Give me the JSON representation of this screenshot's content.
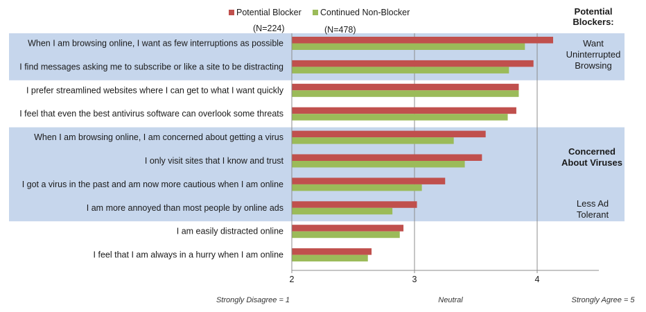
{
  "chart_data": {
    "type": "bar",
    "orientation": "horizontal",
    "categories": [
      "When I am browsing online, I want as few interruptions as possible",
      "I find messages asking me to subscribe or like a site to be distracting",
      "I prefer streamlined websites where I can get to what I want quickly",
      "I feel that even the best antivirus software can overlook some threats",
      "When I am browsing online, I am concerned about getting a virus",
      "I only visit sites that I know and trust",
      "I got a virus in the past and am now more cautious when I am online",
      "I am more annoyed than most people by online ads",
      "I am easily distracted online",
      "I feel that I am always in a hurry when I am online"
    ],
    "series": [
      {
        "name": "Potential Blocker",
        "sample": "(N=224)",
        "color": "#c0504d",
        "values": [
          4.13,
          3.97,
          3.85,
          3.83,
          3.58,
          3.55,
          3.25,
          3.02,
          2.91,
          2.65
        ]
      },
      {
        "name": "Continued Non-Blocker",
        "sample": "(N=478)",
        "color": "#9bbb59",
        "values": [
          3.9,
          3.77,
          3.85,
          3.76,
          3.32,
          3.41,
          3.06,
          2.82,
          2.88,
          2.62
        ]
      }
    ],
    "xlim": [
      2,
      4.5
    ],
    "xticks": [
      2,
      3,
      4
    ],
    "gridlines": [
      3,
      4
    ],
    "axis_anchors": [
      "Strongly Disagree = 1",
      "Neutral",
      "Strongly Agree = 5"
    ],
    "title": "",
    "xlabel": "",
    "ylabel": "",
    "legend": "top",
    "highlight_color": "#c6d6ec",
    "side_heading": [
      "Potential",
      "Blockers:"
    ],
    "group_notes": [
      {
        "lines": [
          "Want",
          "Uninterrupted",
          "Browsing"
        ],
        "bold": false
      },
      {
        "lines": [
          "Concerned",
          "About Viruses"
        ],
        "bold": true
      },
      {
        "lines": [
          "Less Ad",
          "Tolerant"
        ],
        "bold": false
      }
    ]
  }
}
